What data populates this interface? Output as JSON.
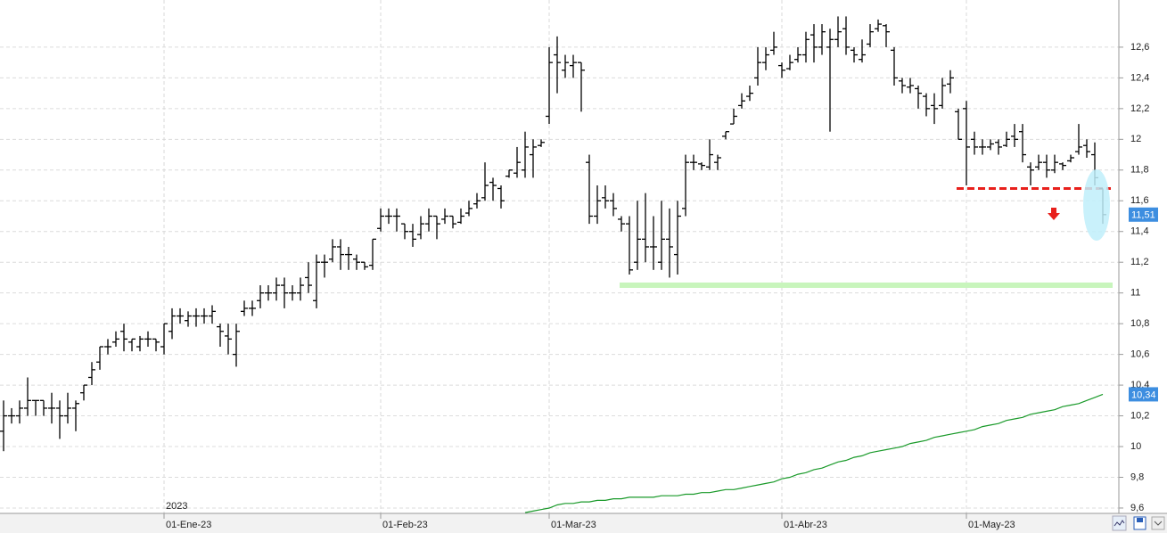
{
  "chart_data": {
    "type": "ohlc",
    "color": "#000000",
    "year_label": "2023",
    "categories": [
      null,
      null,
      null,
      null,
      null,
      null,
      null,
      null,
      null,
      null,
      null,
      null,
      null,
      null,
      null,
      null,
      null,
      null,
      null,
      null,
      "01-Ene-23",
      null,
      null,
      null,
      null,
      null,
      null,
      null,
      null,
      null,
      null,
      null,
      null,
      null,
      null,
      null,
      null,
      null,
      null,
      null,
      null,
      null,
      null,
      null,
      null,
      null,
      null,
      "01-Feb-23",
      null,
      null,
      null,
      null,
      null,
      null,
      null,
      null,
      null,
      null,
      null,
      null,
      null,
      null,
      null,
      null,
      null,
      null,
      null,
      null,
      "01-Mar-23",
      null,
      null,
      null,
      null,
      null,
      null,
      null,
      null,
      null,
      null,
      null,
      null,
      null,
      null,
      null,
      null,
      null,
      null,
      null,
      null,
      null,
      null,
      null,
      null,
      null,
      null,
      null,
      null,
      "01-Abr-23",
      null,
      null,
      null,
      null,
      null,
      null,
      null,
      null,
      null,
      null,
      null,
      null,
      null,
      null,
      null,
      null,
      null,
      null,
      null,
      null,
      null,
      null,
      "01-May-23",
      null,
      null,
      null,
      null,
      null,
      null,
      null,
      null,
      null,
      null,
      null,
      null,
      null,
      null,
      null,
      null,
      null
    ],
    "open": [
      10.1,
      10.2,
      10.2,
      10.25,
      10.3,
      10.3,
      10.25,
      10.25,
      10.2,
      10.25,
      10.35,
      10.45,
      10.55,
      10.65,
      10.68,
      10.75,
      10.68,
      10.65,
      10.7,
      10.7,
      10.65,
      10.75,
      10.85,
      10.82,
      10.85,
      10.85,
      10.85,
      10.78,
      10.72,
      10.6,
      10.88,
      10.9,
      10.95,
      11.0,
      11.0,
      11.05,
      11.0,
      11.0,
      11.1,
      10.95,
      11.2,
      11.22,
      11.3,
      11.25,
      11.22,
      11.2,
      11.18,
      11.42,
      11.5,
      11.5,
      11.45,
      11.4,
      11.38,
      11.45,
      11.5,
      11.48,
      11.5,
      11.46,
      11.52,
      11.58,
      11.62,
      11.72,
      11.68,
      11.76,
      11.78,
      11.8,
      11.9,
      11.96,
      12.15,
      12.55,
      12.45,
      12.48,
      12.5,
      11.85,
      11.5,
      11.62,
      11.6,
      11.48,
      11.45,
      11.2,
      11.35,
      11.3,
      11.2,
      11.35,
      11.25,
      11.55,
      11.85,
      11.84,
      11.82,
      11.85,
      12.02,
      12.1,
      12.22,
      12.28,
      12.4,
      12.5,
      12.58,
      12.48,
      12.46,
      12.52,
      12.55,
      12.68,
      12.6,
      12.6,
      12.65,
      12.72,
      12.58,
      12.52,
      12.62,
      12.72,
      12.74,
      12.58,
      12.38,
      12.34,
      12.33,
      12.28,
      12.22,
      12.22,
      12.36,
      12.18,
      12.2,
      12.0,
      11.95,
      11.95,
      11.98,
      11.96,
      12.02,
      12.05,
      11.82,
      11.82,
      11.85,
      11.8,
      11.84,
      11.86,
      11.92,
      11.96,
      11.9,
      11.68
    ],
    "high": [
      10.3,
      10.25,
      10.3,
      10.45,
      10.3,
      10.3,
      10.35,
      10.3,
      10.35,
      10.3,
      10.4,
      10.55,
      10.65,
      10.7,
      10.75,
      10.8,
      10.7,
      10.72,
      10.75,
      10.7,
      10.8,
      10.9,
      10.9,
      10.88,
      10.9,
      10.9,
      10.92,
      10.8,
      10.8,
      10.8,
      10.95,
      10.95,
      11.05,
      11.05,
      11.1,
      11.1,
      11.05,
      11.1,
      11.2,
      11.25,
      11.25,
      11.35,
      11.35,
      11.3,
      11.25,
      11.2,
      11.35,
      11.55,
      11.55,
      11.55,
      11.45,
      11.45,
      11.5,
      11.55,
      11.5,
      11.55,
      11.5,
      11.55,
      11.6,
      11.65,
      11.85,
      11.75,
      11.7,
      11.8,
      11.95,
      12.05,
      12.0,
      12.0,
      12.6,
      12.67,
      12.55,
      12.55,
      12.5,
      11.9,
      11.7,
      11.7,
      11.65,
      11.5,
      11.5,
      11.6,
      11.65,
      11.5,
      11.6,
      11.55,
      11.6,
      11.9,
      11.9,
      11.85,
      12.0,
      11.9,
      12.05,
      12.2,
      12.3,
      12.35,
      12.6,
      12.6,
      12.7,
      12.5,
      12.55,
      12.6,
      12.7,
      12.75,
      12.75,
      12.72,
      12.8,
      12.8,
      12.6,
      12.65,
      12.75,
      12.78,
      12.75,
      12.6,
      12.4,
      12.4,
      12.35,
      12.3,
      12.3,
      12.4,
      12.45,
      12.2,
      12.25,
      12.05,
      12.0,
      12.0,
      12.0,
      12.05,
      12.1,
      12.1,
      11.85,
      11.9,
      11.9,
      11.9,
      11.85,
      11.9,
      12.1,
      12.0,
      11.98,
      11.68
    ],
    "low": [
      9.97,
      10.15,
      10.15,
      10.2,
      10.2,
      10.2,
      10.15,
      10.05,
      10.15,
      10.1,
      10.3,
      10.4,
      10.5,
      10.6,
      10.65,
      10.62,
      10.62,
      10.62,
      10.65,
      10.62,
      10.6,
      10.7,
      10.8,
      10.78,
      10.78,
      10.8,
      10.8,
      10.65,
      10.6,
      10.52,
      10.85,
      10.85,
      10.9,
      10.95,
      10.95,
      10.9,
      10.95,
      10.95,
      11.0,
      10.9,
      11.1,
      11.2,
      11.15,
      11.15,
      11.15,
      11.15,
      11.15,
      11.4,
      11.45,
      11.4,
      11.35,
      11.3,
      11.35,
      11.4,
      11.35,
      11.45,
      11.42,
      11.45,
      11.5,
      11.55,
      11.6,
      11.6,
      11.55,
      11.75,
      11.75,
      11.75,
      11.75,
      11.95,
      12.1,
      12.3,
      12.4,
      12.4,
      12.18,
      11.45,
      11.45,
      11.55,
      11.5,
      11.4,
      11.12,
      11.15,
      11.2,
      11.15,
      11.15,
      11.1,
      11.12,
      11.5,
      11.8,
      11.8,
      11.8,
      11.8,
      12.0,
      12.1,
      12.2,
      12.25,
      12.35,
      12.45,
      12.55,
      12.4,
      12.45,
      12.5,
      12.5,
      12.5,
      12.55,
      12.05,
      12.6,
      12.55,
      12.5,
      12.5,
      12.6,
      12.7,
      12.6,
      12.35,
      12.3,
      12.3,
      12.2,
      12.15,
      12.1,
      12.2,
      12.3,
      12.0,
      11.7,
      11.9,
      11.9,
      11.93,
      11.9,
      11.95,
      11.95,
      11.85,
      11.7,
      11.8,
      11.75,
      11.78,
      11.8,
      11.85,
      11.9,
      11.88,
      11.7,
      11.45
    ],
    "close": [
      10.2,
      10.2,
      10.25,
      10.3,
      10.3,
      10.25,
      10.25,
      10.2,
      10.25,
      10.28,
      10.4,
      10.5,
      10.65,
      10.65,
      10.7,
      10.7,
      10.7,
      10.7,
      10.7,
      10.68,
      10.8,
      10.85,
      10.85,
      10.85,
      10.85,
      10.85,
      10.88,
      10.75,
      10.7,
      10.75,
      10.9,
      10.9,
      11.0,
      11.0,
      11.05,
      11.0,
      11.0,
      11.05,
      11.05,
      11.2,
      11.2,
      11.3,
      11.25,
      11.25,
      11.2,
      11.17,
      11.35,
      11.5,
      11.5,
      11.5,
      11.4,
      11.35,
      11.45,
      11.5,
      11.45,
      11.5,
      11.45,
      11.5,
      11.55,
      11.6,
      11.7,
      11.7,
      11.6,
      11.8,
      11.85,
      11.95,
      11.95,
      11.98,
      12.5,
      12.5,
      12.5,
      12.5,
      12.45,
      11.5,
      11.6,
      11.6,
      11.55,
      11.45,
      11.15,
      11.35,
      11.3,
      11.3,
      11.35,
      11.3,
      11.5,
      11.85,
      11.85,
      11.83,
      11.9,
      11.88,
      12.05,
      12.15,
      12.25,
      12.3,
      12.5,
      12.55,
      12.6,
      12.45,
      12.5,
      12.55,
      12.65,
      12.6,
      12.7,
      12.65,
      12.7,
      12.6,
      12.55,
      12.55,
      12.7,
      12.75,
      12.7,
      12.4,
      12.35,
      12.35,
      12.3,
      12.2,
      12.2,
      12.35,
      12.4,
      12.0,
      11.95,
      11.95,
      11.95,
      11.97,
      11.95,
      12.0,
      12.0,
      11.9,
      11.8,
      11.85,
      11.8,
      11.85,
      11.83,
      11.88,
      11.95,
      11.92,
      11.75,
      11.51
    ],
    "overlay": {
      "type": "line",
      "color": "#1a9a2a",
      "values": [
        null,
        null,
        null,
        null,
        null,
        null,
        null,
        null,
        null,
        null,
        null,
        null,
        null,
        null,
        null,
        null,
        null,
        null,
        null,
        null,
        null,
        null,
        null,
        null,
        null,
        null,
        null,
        null,
        null,
        null,
        null,
        null,
        null,
        null,
        null,
        null,
        null,
        null,
        null,
        null,
        null,
        null,
        null,
        null,
        null,
        null,
        null,
        null,
        null,
        null,
        null,
        null,
        null,
        null,
        null,
        null,
        null,
        null,
        null,
        null,
        null,
        null,
        null,
        null,
        null,
        9.57,
        9.58,
        9.59,
        9.6,
        9.62,
        9.63,
        9.63,
        9.64,
        9.64,
        9.65,
        9.65,
        9.66,
        9.66,
        9.67,
        9.67,
        9.67,
        9.67,
        9.68,
        9.68,
        9.68,
        9.69,
        9.69,
        9.7,
        9.7,
        9.71,
        9.72,
        9.72,
        9.73,
        9.74,
        9.75,
        9.76,
        9.77,
        9.79,
        9.8,
        9.82,
        9.83,
        9.85,
        9.86,
        9.88,
        9.9,
        9.91,
        9.93,
        9.94,
        9.96,
        9.97,
        9.98,
        9.99,
        10.0,
        10.02,
        10.03,
        10.04,
        10.06,
        10.07,
        10.08,
        10.09,
        10.1,
        10.11,
        10.13,
        10.14,
        10.15,
        10.17,
        10.18,
        10.19,
        10.21,
        10.22,
        10.23,
        10.24,
        10.26,
        10.27,
        10.28,
        10.3,
        10.32,
        10.34
      ]
    },
    "levels": [
      {
        "value": 11.05,
        "color": "#c8f5bc"
      },
      {
        "value": 11.68,
        "color": "#e8201c",
        "dashed": true
      }
    ],
    "price_tags": [
      {
        "value": 11.51,
        "label": "11,51"
      },
      {
        "value": 10.34,
        "label": "10,34"
      }
    ],
    "ylim": [
      9.565,
      12.907
    ],
    "yticks": [
      {
        "value": 9.6,
        "label": "9,6"
      },
      {
        "value": 9.8,
        "label": "9,8"
      },
      10,
      {
        "value": 10.2,
        "label": "10,2"
      },
      {
        "value": 10.4,
        "label": "10,4"
      },
      {
        "value": 10.6,
        "label": "10,6"
      },
      {
        "value": 10.8,
        "label": "10,8"
      },
      11,
      {
        "value": 11.2,
        "label": "11,2"
      },
      {
        "value": 11.4,
        "label": "11,4"
      },
      {
        "value": 11.6,
        "label": "11,6"
      },
      {
        "value": 11.8,
        "label": "11,8"
      },
      12,
      {
        "value": 12.2,
        "label": "12,2"
      },
      {
        "value": 12.4,
        "label": "12,4"
      },
      {
        "value": 12.6,
        "label": "12,6"
      }
    ],
    "grid": true
  }
}
